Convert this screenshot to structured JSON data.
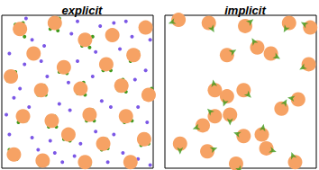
{
  "chart_data": [
    {
      "type": "scatter",
      "title": "explicit",
      "xlim": [
        0,
        100
      ],
      "ylim": [
        0,
        100
      ],
      "tick_labels": false,
      "series": [
        {
          "color": "#3f9a1c",
          "marker": "circle",
          "x": [
            15,
            9,
            14,
            32,
            38,
            37,
            58,
            53,
            60,
            38,
            43,
            41,
            67,
            72,
            70,
            85,
            90,
            88,
            24,
            28,
            29,
            50,
            55,
            54,
            77,
            82,
            80,
            31,
            36,
            35,
            56,
            61,
            60,
            81,
            86,
            45,
            41,
            44,
            66,
            70,
            69,
            92,
            97,
            95,
            25,
            30,
            54,
            58,
            9,
            4,
            11,
            16,
            97,
            99,
            5,
            10
          ],
          "values": [
            86,
            94,
            95,
            91,
            98,
            90,
            79,
            80,
            86,
            63,
            62,
            69,
            64,
            64,
            71,
            70,
            76,
            71,
            48,
            54,
            48,
            49,
            48,
            56,
            51,
            50,
            58,
            27,
            27,
            34,
            31,
            31,
            38,
            30,
            31,
            18,
            19,
            25,
            12,
            13,
            19,
            15,
            16,
            22,
            2,
            3,
            1,
            2,
            63,
            57,
            30,
            31,
            45,
            52,
            12,
            6
          ]
        },
        {
          "color": "#7b57e6",
          "marker": "circle",
          "x": [
            5,
            20,
            28,
            46,
            65,
            82,
            98,
            50,
            60,
            78,
            95,
            15,
            30,
            8,
            18,
            38,
            45,
            66,
            72,
            90,
            96,
            5,
            20,
            24,
            35,
            48,
            62,
            74,
            80,
            90,
            3,
            12,
            44,
            62,
            86,
            26,
            74,
            52,
            40,
            70,
            98,
            16,
            50,
            88,
            32
          ],
          "values": [
            75,
            84,
            80,
            88,
            93,
            96,
            84,
            70,
            60,
            78,
            64,
            68,
            60,
            46,
            40,
            42,
            38,
            44,
            40,
            40,
            30,
            22,
            20,
            12,
            10,
            8,
            24,
            22,
            10,
            6,
            35,
            52,
            56,
            76,
            86,
            70,
            95,
            16,
            4,
            4,
            2,
            98,
            96,
            58,
            18
          ]
        },
        {
          "color": "#f6a264",
          "marker": "circle",
          "x": [
            12,
            35,
            55,
            73,
            95,
            21,
            41,
            69,
            87,
            6,
            26,
            52,
            79,
            97,
            14,
            33,
            58,
            82,
            44,
            67,
            94,
            8,
            27,
            55,
            85
          ],
          "values": [
            91,
            95,
            84,
            87,
            92,
            75,
            66,
            68,
            74,
            60,
            51,
            52,
            54,
            48,
            34,
            31,
            35,
            34,
            22,
            16,
            19,
            9,
            5,
            4,
            4
          ]
        }
      ]
    },
    {
      "type": "scatter",
      "title": "implicit",
      "xlim": [
        0,
        100
      ],
      "ylim": [
        0,
        100
      ],
      "tick_labels": false,
      "series": [
        {
          "color": "#f6a264",
          "marker": "circle",
          "x": [
            9,
            29,
            53,
            82,
            96,
            41,
            61,
            70,
            95,
            33,
            41,
            52,
            88,
            77,
            33,
            25,
            43,
            10,
            28,
            52,
            64,
            67,
            86,
            47
          ],
          "values": [
            97,
            95,
            93,
            95,
            92,
            74,
            79,
            75,
            68,
            51,
            47,
            51,
            45,
            39,
            34,
            28,
            35,
            16,
            11,
            21,
            22,
            13,
            4,
            3
          ],
          "angles": [
            200,
            -60,
            40,
            -120,
            150,
            30,
            120,
            -30,
            210,
            100,
            250,
            -45,
            170,
            60,
            135,
            200,
            -90,
            270,
            20,
            160,
            80,
            -20,
            110,
            300
          ]
        }
      ]
    }
  ]
}
